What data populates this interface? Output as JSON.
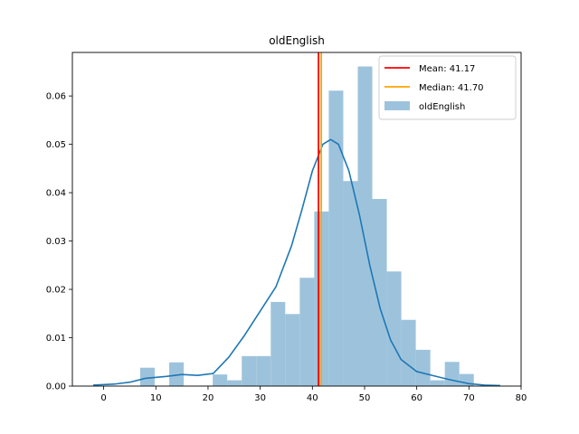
{
  "chart_data": {
    "type": "bar",
    "title": "oldEnglish",
    "xlabel": "",
    "ylabel": "",
    "xlim": [
      -6,
      80
    ],
    "ylim": [
      0,
      0.069
    ],
    "xticks": [
      0,
      10,
      20,
      30,
      40,
      50,
      60,
      70,
      80
    ],
    "yticks": [
      0.0,
      0.01,
      0.02,
      0.03,
      0.04,
      0.05,
      0.06
    ],
    "ytick_labels": [
      "0.00",
      "0.01",
      "0.02",
      "0.03",
      "0.04",
      "0.05",
      "0.06"
    ],
    "grid": false,
    "legend_position": "top-right",
    "histogram": {
      "name": "oldEnglish",
      "color": "#9dc3dc",
      "bin_width": 2.78,
      "bin_edges_start": 7.0,
      "values": [
        0.0038,
        0,
        0.0049,
        0,
        0.0001,
        0.0024,
        0.0012,
        0.0062,
        0.0062,
        0.0174,
        0.0149,
        0.0224,
        0.0361,
        0.0611,
        0.0424,
        0.0661,
        0.0387,
        0.0237,
        0.0137,
        0.0075,
        0.0012,
        0.005,
        0.0025
      ]
    },
    "kde": {
      "color": "#1f77b4",
      "x": [
        -2,
        2,
        5,
        8,
        12,
        15,
        18,
        21,
        24,
        27,
        30,
        33,
        36,
        38,
        40,
        42,
        43.5,
        45,
        47,
        49,
        51,
        53,
        55,
        57,
        60,
        63,
        66,
        70,
        73,
        76
      ],
      "y": [
        0.0002,
        0.0004,
        0.0008,
        0.0016,
        0.002,
        0.0024,
        0.0022,
        0.0026,
        0.006,
        0.0105,
        0.0155,
        0.0205,
        0.029,
        0.0365,
        0.0445,
        0.05,
        0.051,
        0.05,
        0.0445,
        0.0355,
        0.025,
        0.016,
        0.0095,
        0.0055,
        0.003,
        0.0022,
        0.0014,
        0.0005,
        0.0002,
        0.0001
      ]
    },
    "mean": {
      "value": 41.17,
      "label": "Mean: 41.17",
      "color": "#ff0000"
    },
    "median": {
      "value": 41.7,
      "label": "Median: 41.70",
      "color": "#ffa500"
    },
    "legend": [
      {
        "label": "Mean: 41.17",
        "kind": "line",
        "color": "#ff0000"
      },
      {
        "label": "Median: 41.70",
        "kind": "line",
        "color": "#ffa500"
      },
      {
        "label": "oldEnglish",
        "kind": "patch",
        "color": "#9dc3dc"
      }
    ]
  }
}
